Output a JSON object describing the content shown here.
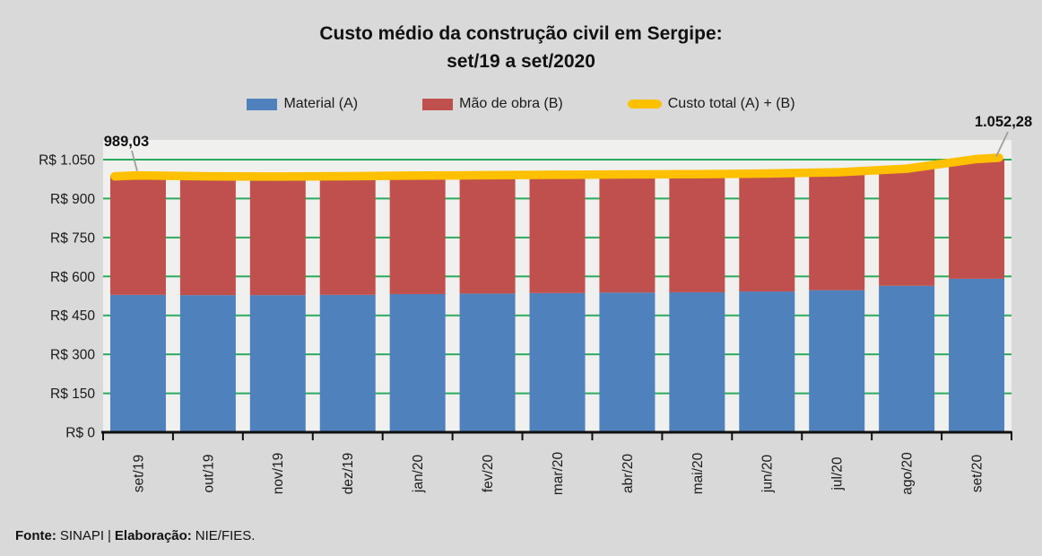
{
  "title": {
    "line1": "Custo médio da construção civil em Sergipe:",
    "line2": "set/19 a set/2020"
  },
  "legend": [
    {
      "label": "Material (A)",
      "color": "#4F81BD",
      "shape": "rect"
    },
    {
      "label": "Mão de obra (B)",
      "color": "#C0504D",
      "shape": "rect"
    },
    {
      "label": "Custo total (A) + (B)",
      "color": "#FFC000",
      "shape": "line"
    }
  ],
  "footer": {
    "fonte_label": "Fonte:",
    "fonte_value": "SINAPI",
    "separator": "|",
    "elaboracao_label": "Elaboração:",
    "elaboracao_value": "NIE/FIES."
  },
  "chart_data": {
    "type": "bar",
    "subtype": "stacked-bar-with-line",
    "title": "Custo médio da construção civil em Sergipe: set/19 a set/2020",
    "categories": [
      "set/19",
      "out/19",
      "nov/19",
      "dez/19",
      "jan/20",
      "fev/20",
      "mar/20",
      "abr/20",
      "mai/20",
      "jun/20",
      "jul/20",
      "ago/20",
      "set/20"
    ],
    "series": [
      {
        "name": "Material (A)",
        "render": "bar",
        "color": "#4F81BD",
        "values": [
          529,
          528,
          528,
          529,
          532,
          534,
          536,
          538,
          539,
          542,
          547,
          564,
          591
        ]
      },
      {
        "name": "Mão de obra (B)",
        "render": "bar",
        "color": "#C0504D",
        "values": [
          460.03,
          457.5,
          457,
          457,
          456.5,
          456,
          455.5,
          455,
          455,
          454.5,
          454,
          451,
          461.28
        ]
      },
      {
        "name": "Custo total (A) + (B)",
        "render": "line",
        "color": "#FFC000",
        "values": [
          989.03,
          985.5,
          985,
          986,
          988.5,
          990,
          991.5,
          993,
          994,
          996.5,
          1001,
          1015,
          1052.28
        ]
      }
    ],
    "ytick_labels": [
      "R$ 0",
      "R$ 150",
      "R$ 300",
      "R$ 450",
      "R$ 600",
      "R$ 750",
      "R$ 900",
      "R$ 1.050"
    ],
    "yticks": [
      0,
      150,
      300,
      450,
      600,
      750,
      900,
      1050
    ],
    "ylim": [
      0,
      1127
    ],
    "grid": true,
    "gridline_color": "#2BAB5C",
    "plot_bg": "#F0F0EE",
    "page_bg": "#D9D9D9",
    "axis_color": "#111111",
    "leader_color": "#9e9e9e",
    "legend_position": "top",
    "annotations": [
      {
        "text": "989,03",
        "index": 0,
        "value": 989.03
      },
      {
        "text": "1.052,28",
        "index": 12,
        "value": 1052.28
      }
    ]
  }
}
